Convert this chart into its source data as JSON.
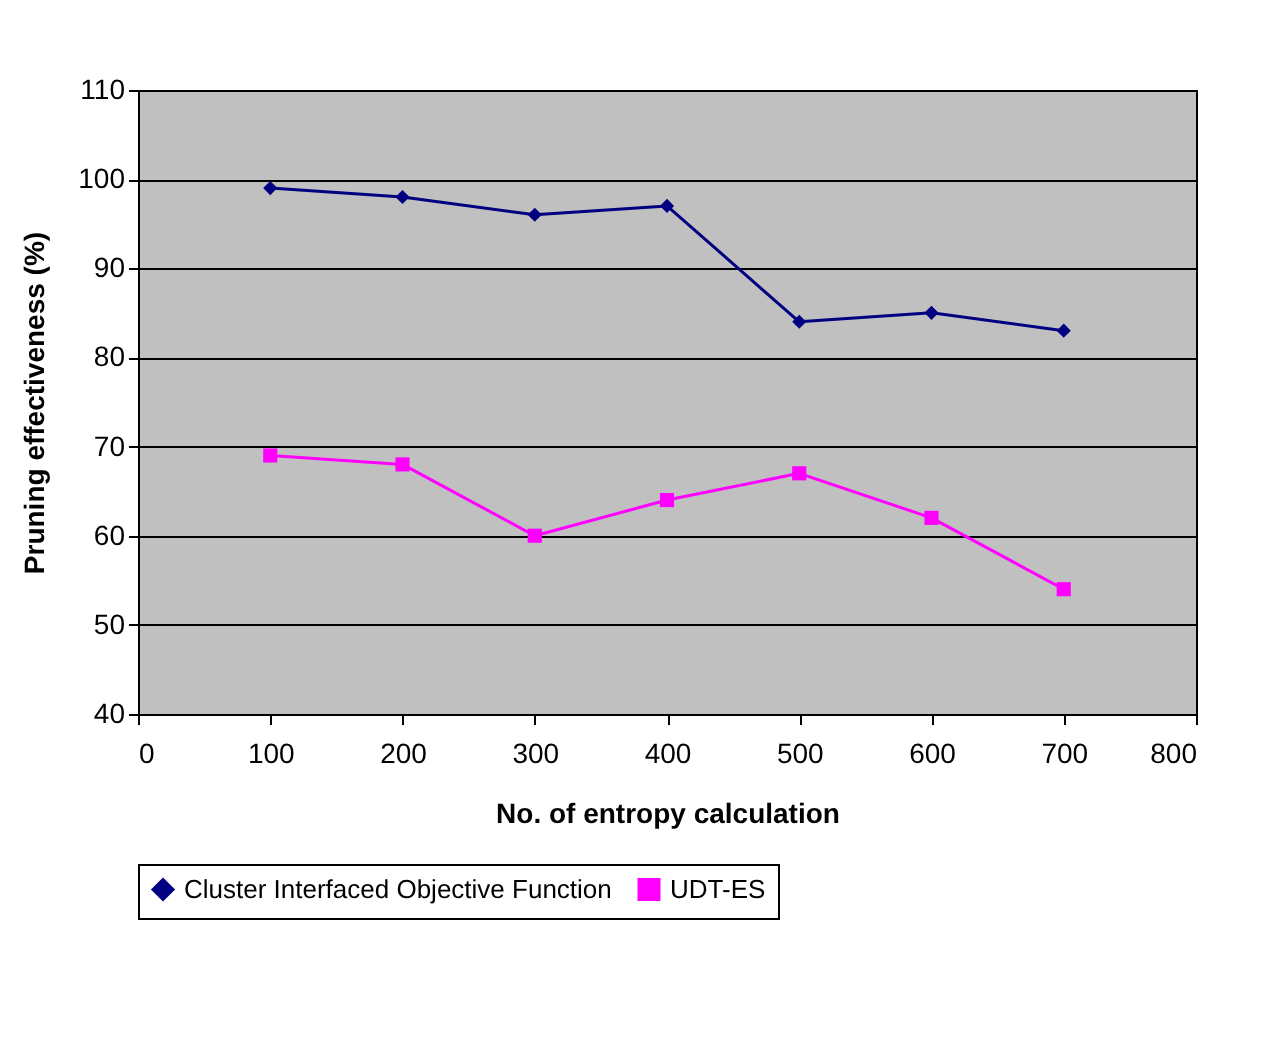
{
  "chart_data": {
    "type": "line",
    "xlabel": "No. of entropy calculation",
    "ylabel": "Pruning effectiveness (%)",
    "x": [
      100,
      200,
      300,
      400,
      500,
      600,
      700
    ],
    "series": [
      {
        "name": "Cluster Interfaced Objective Function",
        "color": "#000080",
        "marker": "diamond",
        "values": [
          99,
          98,
          96,
          97,
          84,
          85,
          83
        ]
      },
      {
        "name": "UDT-ES",
        "color": "#ff00ff",
        "marker": "square",
        "values": [
          69,
          68,
          60,
          64,
          67,
          62,
          54
        ]
      }
    ],
    "xlim": [
      0,
      800
    ],
    "xticks": [
      0,
      100,
      200,
      300,
      400,
      500,
      600,
      700,
      800
    ],
    "ylim": [
      40,
      110
    ],
    "yticks": [
      40,
      50,
      60,
      70,
      80,
      90,
      100,
      110
    ],
    "grid": "y",
    "legend": "bottom",
    "line_style": "solid"
  }
}
